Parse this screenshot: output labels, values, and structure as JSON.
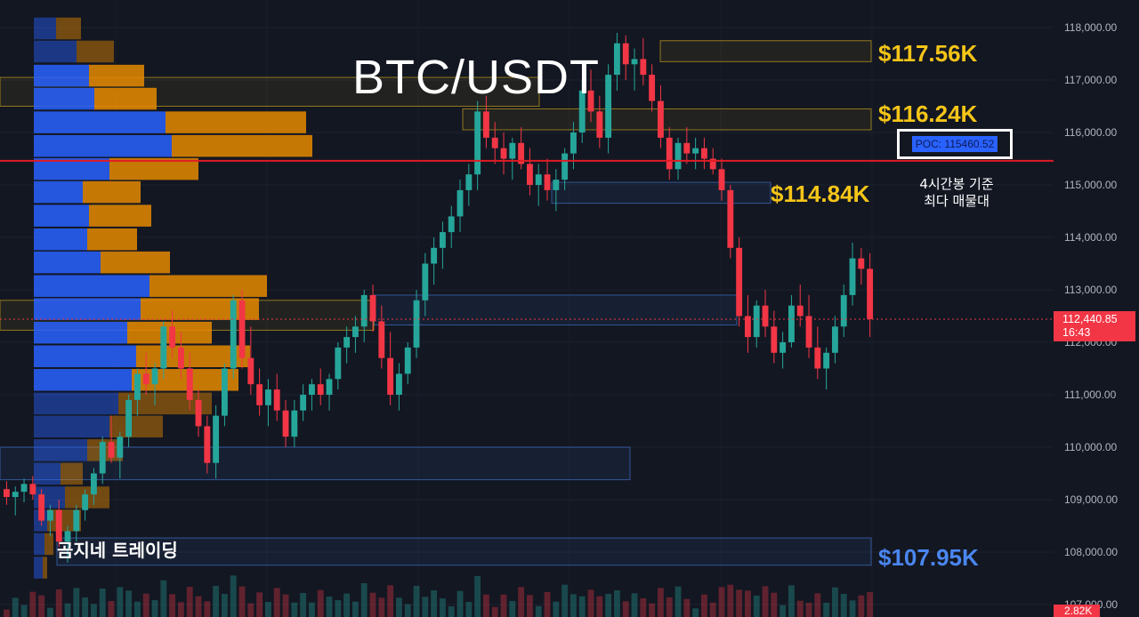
{
  "title": "BTC/USDT",
  "levels": {
    "l1": "$117.56K",
    "l2": "$116.24K",
    "l3": "$114.84K",
    "l4": "$107.95K"
  },
  "poc": {
    "label": "POC: 115460.52",
    "note_line1": "4시간봉 기준",
    "note_line2": "최다 매물대"
  },
  "brand": "곰지네 트레이딩",
  "current_price": {
    "price": "112,440.85",
    "countdown": "16:43",
    "volume": "2.82K"
  },
  "colors": {
    "background": "#131722",
    "up": "#26a69a",
    "down": "#f23645",
    "poc_line": "#e01b24",
    "level_yellow": "#f5c518",
    "level_blue": "#4a86f0",
    "vp_blue": "#2962ff",
    "vp_orange": "#e68a00"
  },
  "chart_data": {
    "type": "candlestick",
    "title": "BTC/USDT",
    "ylim": [
      106800,
      118450
    ],
    "y_ticks": [
      "118,000.00",
      "117,000.00",
      "116,000.00",
      "115,000.00",
      "114,000.00",
      "113,000.00",
      "112,000.00",
      "111,000.00",
      "110,000.00",
      "109,000.00",
      "108,000.00",
      "107,000.00"
    ],
    "y_tick_values": [
      118000,
      117000,
      116000,
      115000,
      114000,
      113000,
      112000,
      111000,
      110000,
      109000,
      108000,
      107000
    ],
    "horizontal_levels": [
      {
        "name": "POC",
        "value": 115460.52
      },
      {
        "name": "current",
        "value": 112440.85
      }
    ],
    "zones": [
      {
        "color": "yellow",
        "y_low": 117350,
        "y_high": 117750
      },
      {
        "color": "yellow",
        "y_low": 116050,
        "y_high": 116450
      },
      {
        "color": "blue",
        "y_low": 114650,
        "y_high": 115050
      },
      {
        "color": "blue",
        "y_low": 112330,
        "y_high": 112900
      },
      {
        "color": "blue",
        "y_low": 109380,
        "y_high": 110000
      },
      {
        "color": "blue",
        "y_low": 107750,
        "y_high": 108270
      },
      {
        "color": "yellow",
        "y_low": 116500,
        "y_high": 117050
      },
      {
        "color": "yellow",
        "y_low": 112230,
        "y_high": 112800
      }
    ],
    "volume_profile": {
      "levels": [
        118000,
        117560,
        117100,
        116660,
        116210,
        115760,
        115320,
        114880,
        114430,
        113980,
        113540,
        113090,
        112650,
        112200,
        111750,
        111300,
        110850,
        110410,
        109960,
        109510,
        109060,
        108620,
        108170,
        107720
      ],
      "buy": [
        25,
        48,
        62,
        68,
        148,
        155,
        85,
        55,
        62,
        60,
        75,
        130,
        120,
        105,
        115,
        110,
        95,
        85,
        60,
        30,
        35,
        15,
        12,
        10
      ],
      "sell": [
        28,
        42,
        62,
        70,
        158,
        158,
        100,
        65,
        70,
        56,
        78,
        132,
        133,
        95,
        128,
        120,
        105,
        60,
        40,
        25,
        50,
        38,
        10,
        5
      ]
    },
    "candles_ohlc_sample_note": "",
    "candles": [
      [
        109200,
        109350,
        108900,
        109050
      ],
      [
        109050,
        109250,
        108700,
        109150
      ],
      [
        109150,
        109400,
        108950,
        109300
      ],
      [
        109300,
        109450,
        109000,
        109100
      ],
      [
        109100,
        109200,
        108500,
        108600
      ],
      [
        108600,
        108900,
        108300,
        108800
      ],
      [
        108800,
        109000,
        108100,
        108200
      ],
      [
        108200,
        108500,
        107800,
        108400
      ],
      [
        108400,
        108900,
        108200,
        108800
      ],
      [
        108800,
        109200,
        108600,
        109100
      ],
      [
        109100,
        109600,
        108900,
        109500
      ],
      [
        109500,
        110200,
        109300,
        110100
      ],
      [
        110100,
        110600,
        109700,
        109800
      ],
      [
        109800,
        110300,
        109400,
        110200
      ],
      [
        110200,
        111000,
        110000,
        110900
      ],
      [
        110900,
        111500,
        110600,
        111400
      ],
      [
        111400,
        111800,
        111000,
        111200
      ],
      [
        111200,
        111600,
        110800,
        111500
      ],
      [
        111500,
        112400,
        111300,
        112300
      ],
      [
        112300,
        112600,
        111700,
        111900
      ],
      [
        111900,
        112200,
        111300,
        111500
      ],
      [
        111500,
        111800,
        110700,
        110900
      ],
      [
        110900,
        111100,
        110200,
        110400
      ],
      [
        110400,
        110600,
        109500,
        109700
      ],
      [
        109700,
        110800,
        109400,
        110600
      ],
      [
        110600,
        111600,
        110400,
        111500
      ],
      [
        111500,
        112900,
        111300,
        112800
      ],
      [
        112800,
        113000,
        111500,
        111700
      ],
      [
        111700,
        112300,
        111000,
        111200
      ],
      [
        111200,
        111500,
        110600,
        110800
      ],
      [
        110800,
        111300,
        110400,
        111100
      ],
      [
        111100,
        111400,
        110500,
        110700
      ],
      [
        110700,
        110900,
        110000,
        110200
      ],
      [
        110200,
        110900,
        110000,
        110700
      ],
      [
        110700,
        111200,
        110500,
        111000
      ],
      [
        111000,
        111300,
        110700,
        111200
      ],
      [
        111200,
        111500,
        110800,
        111000
      ],
      [
        111000,
        111400,
        110700,
        111300
      ],
      [
        111300,
        112000,
        111100,
        111900
      ],
      [
        111900,
        112300,
        111600,
        112100
      ],
      [
        112100,
        112500,
        111800,
        112300
      ],
      [
        112300,
        113000,
        112000,
        112900
      ],
      [
        112900,
        113100,
        112200,
        112400
      ],
      [
        112400,
        112700,
        111500,
        111700
      ],
      [
        111700,
        112200,
        110800,
        111000
      ],
      [
        111000,
        111600,
        110700,
        111400
      ],
      [
        111400,
        112000,
        111200,
        111900
      ],
      [
        111900,
        113000,
        111700,
        112800
      ],
      [
        112800,
        113700,
        112500,
        113500
      ],
      [
        113500,
        114000,
        113100,
        113800
      ],
      [
        113800,
        114300,
        113400,
        114100
      ],
      [
        114100,
        114600,
        113800,
        114400
      ],
      [
        114400,
        115100,
        114100,
        114900
      ],
      [
        114900,
        115400,
        114600,
        115200
      ],
      [
        115200,
        116600,
        114900,
        116400
      ],
      [
        116400,
        116700,
        115700,
        115900
      ],
      [
        115900,
        116200,
        115400,
        115700
      ],
      [
        115700,
        116000,
        115200,
        115500
      ],
      [
        115500,
        115900,
        115100,
        115800
      ],
      [
        115800,
        116100,
        115300,
        115400
      ],
      [
        115400,
        115700,
        114800,
        115000
      ],
      [
        115000,
        115400,
        114600,
        115200
      ],
      [
        115200,
        115500,
        114700,
        114900
      ],
      [
        114900,
        115300,
        114500,
        115100
      ],
      [
        115100,
        115700,
        114900,
        115600
      ],
      [
        115600,
        116200,
        115300,
        116000
      ],
      [
        116000,
        117000,
        115800,
        116800
      ],
      [
        116800,
        117200,
        116200,
        116400
      ],
      [
        116400,
        116700,
        115700,
        115900
      ],
      [
        115900,
        117300,
        115600,
        117100
      ],
      [
        117100,
        117900,
        116800,
        117700
      ],
      [
        117700,
        117850,
        117000,
        117300
      ],
      [
        117300,
        117600,
        116800,
        117400
      ],
      [
        117400,
        117800,
        116900,
        117100
      ],
      [
        117100,
        117300,
        116400,
        116600
      ],
      [
        116600,
        116900,
        115700,
        115900
      ],
      [
        115900,
        116100,
        115100,
        115300
      ],
      [
        115300,
        115900,
        115100,
        115800
      ],
      [
        115800,
        116100,
        115400,
        115600
      ],
      [
        115600,
        115900,
        115300,
        115700
      ],
      [
        115700,
        115900,
        115300,
        115500
      ],
      [
        115500,
        115700,
        115200,
        115300
      ],
      [
        115300,
        115500,
        114700,
        114900
      ],
      [
        114900,
        115000,
        113600,
        113800
      ],
      [
        113800,
        114000,
        112300,
        112500
      ],
      [
        112500,
        112900,
        111800,
        112100
      ],
      [
        112100,
        112800,
        111900,
        112700
      ],
      [
        112700,
        113000,
        112100,
        112300
      ],
      [
        112300,
        112600,
        111600,
        111800
      ],
      [
        111800,
        112200,
        111500,
        112000
      ],
      [
        112000,
        112900,
        111900,
        112700
      ],
      [
        112700,
        113100,
        112300,
        112500
      ],
      [
        112500,
        112900,
        111700,
        111900
      ],
      [
        111900,
        112300,
        111300,
        111500
      ],
      [
        111500,
        111900,
        111100,
        111800
      ],
      [
        111800,
        112500,
        111600,
        112300
      ],
      [
        112300,
        113100,
        112100,
        112900
      ],
      [
        112900,
        113900,
        112700,
        113600
      ],
      [
        113600,
        113800,
        113100,
        113400
      ],
      [
        113400,
        113700,
        112100,
        112440
      ]
    ]
  }
}
